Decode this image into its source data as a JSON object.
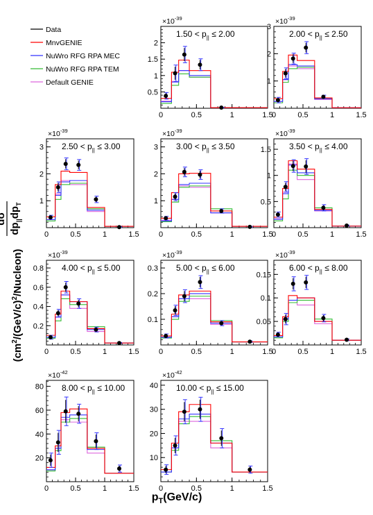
{
  "y_axis_title": "dσ/(dp_||dp_T) (cm²/(GeV/c)²/Nucleon)",
  "y_axis_title_parts": {
    "numerator": "dσ",
    "denominator": "dp",
    "sub1": "||",
    "dp2": "dp",
    "sub2": "T",
    "units": "(cm",
    "sup": "2",
    "units_rest": "/(GeV/c)",
    "sup2": "2",
    "units_end": "/Nucleon)"
  },
  "x_axis_title": "p_T(GeV/c)",
  "x_axis_title_parts": {
    "main": "p",
    "sub": "T",
    "rest": "(GeV/c)"
  },
  "legend": [
    {
      "label": "Data",
      "color": "#000000"
    },
    {
      "label": "MnvGENIE",
      "color": "#ff0000"
    },
    {
      "label": "NuWro RFG RPA MEC",
      "color": "#3333ff"
    },
    {
      "label": "NuWro RFG RPA TEM",
      "color": "#33bb33"
    },
    {
      "label": "Default GENIE",
      "color": "#dd66dd"
    }
  ],
  "chart_data": [
    {
      "type": "histogram",
      "label": "1.50 < p_|| ≤ 2.00",
      "label_lo": "1.50",
      "label_hi": "2.00",
      "scale_label": "×10^-39",
      "scale_base": "×10",
      "scale_exp": "-39",
      "ylim": [
        0,
        2.5
      ],
      "yticks": [
        0.5,
        1,
        1.5,
        2
      ],
      "xlim": [
        0,
        1.5
      ],
      "xticks": [
        0,
        0.5,
        1,
        1.5
      ],
      "bin_edges": [
        0,
        0.15,
        0.25,
        0.4,
        0.7,
        1.0,
        1.5
      ],
      "series": [
        {
          "name": "MnvGENIE",
          "values": [
            0.3,
            1.1,
            1.47,
            1.15,
            0.02,
            0.02
          ]
        },
        {
          "name": "NuWro RFG RPA MEC",
          "values": [
            0.2,
            0.8,
            1.15,
            1.0,
            0.02,
            0.02
          ]
        },
        {
          "name": "NuWro RFG RPA TEM",
          "values": [
            0.15,
            0.7,
            1.05,
            0.95,
            0.02,
            0.02
          ]
        },
        {
          "name": "Default GENIE",
          "values": [
            0.22,
            0.82,
            1.15,
            0.95,
            0.02,
            0.02
          ]
        }
      ],
      "data": {
        "x": [
          0.07,
          0.2,
          0.33,
          0.55,
          0.85
        ],
        "y": [
          0.38,
          1.07,
          1.64,
          1.33,
          0.02
        ],
        "err": [
          0.1,
          0.25,
          0.25,
          0.18,
          0.01
        ]
      }
    },
    {
      "type": "histogram",
      "label": "2.00 < p_|| ≤ 2.50",
      "label_lo": "2.00",
      "label_hi": "2.50",
      "scale_label": "×10^-39",
      "scale_base": "×10",
      "scale_exp": "-39",
      "ylim": [
        0,
        3
      ],
      "yticks": [
        1,
        2,
        3
      ],
      "xlim": [
        0,
        1.5
      ],
      "xticks": [
        0,
        0.5,
        1,
        1.5
      ],
      "bin_edges": [
        0,
        0.15,
        0.25,
        0.4,
        0.7,
        1.0,
        1.5
      ],
      "series": [
        {
          "name": "MnvGENIE",
          "values": [
            0.35,
            1.35,
            1.95,
            1.75,
            0.38,
            0.02
          ]
        },
        {
          "name": "NuWro RFG RPA MEC",
          "values": [
            0.25,
            1.05,
            1.6,
            1.55,
            0.35,
            0.02
          ]
        },
        {
          "name": "NuWro RFG RPA TEM",
          "values": [
            0.2,
            0.95,
            1.45,
            1.5,
            0.35,
            0.02
          ]
        },
        {
          "name": "Default GENIE",
          "values": [
            0.25,
            1.05,
            1.55,
            1.45,
            0.32,
            0.02
          ]
        }
      ],
      "data": {
        "x": [
          0.07,
          0.2,
          0.33,
          0.55,
          0.85
        ],
        "y": [
          0.3,
          1.28,
          1.82,
          2.22,
          0.42
        ],
        "err": [
          0.1,
          0.2,
          0.2,
          0.22,
          0.06
        ]
      }
    },
    {
      "type": "histogram",
      "label": "2.50 < p_|| ≤ 3.00",
      "label_lo": "2.50",
      "label_hi": "3.00",
      "scale_label": "×10^-39",
      "scale_base": "×10",
      "scale_exp": "-39",
      "ylim": [
        0,
        3.3
      ],
      "yticks": [
        1,
        2,
        3
      ],
      "xlim": [
        0,
        1.5
      ],
      "xticks": [
        0,
        0.5,
        1,
        1.5
      ],
      "bin_edges": [
        0,
        0.15,
        0.25,
        0.4,
        0.7,
        1.0,
        1.5
      ],
      "series": [
        {
          "name": "MnvGENIE",
          "values": [
            0.4,
            1.6,
            2.1,
            2.05,
            0.75,
            0.05
          ]
        },
        {
          "name": "NuWro RFG RPA MEC",
          "values": [
            0.3,
            1.2,
            1.7,
            1.75,
            0.65,
            0.05
          ]
        },
        {
          "name": "NuWro RFG RPA TEM",
          "values": [
            0.25,
            1.05,
            1.6,
            1.65,
            0.7,
            0.05
          ]
        },
        {
          "name": "Default GENIE",
          "values": [
            0.3,
            1.25,
            1.75,
            1.6,
            0.6,
            0.05
          ]
        }
      ],
      "data": {
        "x": [
          0.07,
          0.2,
          0.33,
          0.55,
          0.85,
          1.25
        ],
        "y": [
          0.38,
          1.5,
          2.37,
          2.33,
          1.05,
          0.02
        ],
        "err": [
          0.08,
          0.2,
          0.22,
          0.2,
          0.12,
          0.02
        ]
      }
    },
    {
      "type": "histogram",
      "label": "3.00 < p_|| ≤ 3.50",
      "label_lo": "3.00",
      "label_hi": "3.50",
      "scale_label": "×10^-39",
      "scale_base": "×10",
      "scale_exp": "-39",
      "ylim": [
        0,
        3.3
      ],
      "yticks": [
        1,
        2,
        3
      ],
      "xlim": [
        0,
        1.5
      ],
      "xticks": [
        0,
        0.5,
        1,
        1.5
      ],
      "bin_edges": [
        0,
        0.15,
        0.25,
        0.4,
        0.7,
        1.0,
        1.5
      ],
      "series": [
        {
          "name": "MnvGENIE",
          "values": [
            0.35,
            1.3,
            2.0,
            2.02,
            0.62,
            0.05
          ]
        },
        {
          "name": "NuWro RFG RPA MEC",
          "values": [
            0.25,
            1.05,
            1.6,
            1.65,
            0.55,
            0.05
          ]
        },
        {
          "name": "NuWro RFG RPA TEM",
          "values": [
            0.22,
            0.95,
            1.5,
            1.55,
            0.7,
            0.05
          ]
        },
        {
          "name": "Default GENIE",
          "values": [
            0.28,
            1.05,
            1.55,
            1.5,
            0.55,
            0.05
          ]
        }
      ],
      "data": {
        "x": [
          0.07,
          0.2,
          0.33,
          0.55,
          0.85,
          1.25
        ],
        "y": [
          0.35,
          1.15,
          2.07,
          1.97,
          0.62,
          0.03
        ],
        "err": [
          0.07,
          0.15,
          0.18,
          0.18,
          0.08,
          0.02
        ]
      }
    },
    {
      "type": "histogram",
      "label": "3.50 < p_|| ≤ 4.00",
      "label_lo": "3.50",
      "label_hi": "4.00",
      "scale_label": "×10^-39",
      "scale_base": "×10",
      "scale_exp": "-39",
      "ylim": [
        0,
        1.7
      ],
      "yticks": [
        0.5,
        1,
        1.5
      ],
      "xlim": [
        0,
        1.5
      ],
      "xticks": [
        0,
        0.5,
        1,
        1.5
      ],
      "bin_edges": [
        0,
        0.15,
        0.25,
        0.4,
        0.7,
        1.0,
        1.5
      ],
      "series": [
        {
          "name": "MnvGENIE",
          "values": [
            0.2,
            0.75,
            1.28,
            1.12,
            0.35,
            0.03
          ]
        },
        {
          "name": "NuWro RFG RPA MEC",
          "values": [
            0.16,
            0.65,
            1.2,
            1.05,
            0.33,
            0.03
          ]
        },
        {
          "name": "NuWro RFG RPA TEM",
          "values": [
            0.13,
            0.55,
            1.1,
            1.0,
            0.38,
            0.03
          ]
        },
        {
          "name": "Default GENIE",
          "values": [
            0.17,
            0.68,
            1.22,
            0.92,
            0.32,
            0.03
          ]
        }
      ],
      "data": {
        "x": [
          0.07,
          0.2,
          0.33,
          0.55,
          0.85,
          1.25
        ],
        "y": [
          0.25,
          0.78,
          1.18,
          1.17,
          0.38,
          0.04
        ],
        "err": [
          0.05,
          0.1,
          0.12,
          0.15,
          0.06,
          0.01
        ]
      }
    },
    {
      "type": "histogram",
      "label": "4.00 < p_|| ≤ 5.00",
      "label_lo": "4.00",
      "label_hi": "5.00",
      "scale_label": "×10^-39",
      "scale_base": "×10",
      "scale_exp": "-39",
      "ylim": [
        0,
        0.88
      ],
      "yticks": [
        0.2,
        0.4,
        0.6,
        0.8
      ],
      "xlim": [
        0,
        1.5
      ],
      "xticks": [
        0,
        0.5,
        1,
        1.5
      ],
      "bin_edges": [
        0,
        0.15,
        0.25,
        0.4,
        0.7,
        1.0,
        1.5
      ],
      "series": [
        {
          "name": "MnvGENIE",
          "values": [
            0.1,
            0.32,
            0.56,
            0.45,
            0.17,
            0.02
          ]
        },
        {
          "name": "NuWro RFG RPA MEC",
          "values": [
            0.08,
            0.29,
            0.52,
            0.45,
            0.16,
            0.02
          ]
        },
        {
          "name": "NuWro RFG RPA TEM",
          "values": [
            0.07,
            0.25,
            0.48,
            0.42,
            0.19,
            0.02
          ]
        },
        {
          "name": "Default GENIE",
          "values": [
            0.08,
            0.29,
            0.52,
            0.38,
            0.14,
            0.02
          ]
        }
      ],
      "data": {
        "x": [
          0.07,
          0.2,
          0.33,
          0.55,
          0.85,
          1.25
        ],
        "y": [
          0.08,
          0.33,
          0.6,
          0.43,
          0.16,
          0.02
        ],
        "err": [
          0.02,
          0.04,
          0.06,
          0.05,
          0.025,
          0.005
        ]
      }
    },
    {
      "type": "histogram",
      "label": "5.00 < p_|| ≤ 6.00",
      "label_lo": "5.00",
      "label_hi": "6.00",
      "scale_label": "×10^-39",
      "scale_base": "×10",
      "scale_exp": "-39",
      "ylim": [
        0,
        0.33
      ],
      "yticks": [
        0.1,
        0.2,
        0.3
      ],
      "xlim": [
        0,
        1.5
      ],
      "xticks": [
        0,
        0.5,
        1,
        1.5
      ],
      "bin_edges": [
        0,
        0.15,
        0.25,
        0.4,
        0.7,
        1.0,
        1.5
      ],
      "series": [
        {
          "name": "MnvGENIE",
          "values": [
            0.035,
            0.12,
            0.195,
            0.21,
            0.09,
            0.012
          ]
        },
        {
          "name": "NuWro RFG RPA MEC",
          "values": [
            0.03,
            0.11,
            0.18,
            0.2,
            0.085,
            0.012
          ]
        },
        {
          "name": "NuWro RFG RPA TEM",
          "values": [
            0.027,
            0.1,
            0.17,
            0.19,
            0.095,
            0.012
          ]
        },
        {
          "name": "Default GENIE",
          "values": [
            0.03,
            0.11,
            0.18,
            0.18,
            0.08,
            0.012
          ]
        }
      ],
      "data": {
        "x": [
          0.07,
          0.2,
          0.33,
          0.55,
          0.85,
          1.25
        ],
        "y": [
          0.035,
          0.135,
          0.19,
          0.245,
          0.085,
          0.013
        ],
        "err": [
          0.008,
          0.02,
          0.025,
          0.025,
          0.01,
          0.003
        ]
      }
    },
    {
      "type": "histogram",
      "label": "6.00 < p_|| ≤ 8.00",
      "label_lo": "6.00",
      "label_hi": "8.00",
      "scale_label": "×10^-39",
      "scale_base": "×10",
      "scale_exp": "-39",
      "ylim": [
        0,
        0.18
      ],
      "yticks": [
        0.05,
        0.1,
        0.15
      ],
      "xlim": [
        0,
        1.5
      ],
      "xticks": [
        0,
        0.5,
        1,
        1.5
      ],
      "bin_edges": [
        0,
        0.15,
        0.25,
        0.4,
        0.7,
        1.0,
        1.5
      ],
      "series": [
        {
          "name": "MnvGENIE",
          "values": [
            0.02,
            0.06,
            0.105,
            0.1,
            0.05,
            0.01
          ]
        },
        {
          "name": "NuWro RFG RPA MEC",
          "values": [
            0.017,
            0.055,
            0.095,
            0.1,
            0.05,
            0.01
          ]
        },
        {
          "name": "NuWro RFG RPA TEM",
          "values": [
            0.015,
            0.05,
            0.09,
            0.095,
            0.055,
            0.01
          ]
        },
        {
          "name": "Default GENIE",
          "values": [
            0.017,
            0.055,
            0.09,
            0.085,
            0.045,
            0.01
          ]
        }
      ],
      "data": {
        "x": [
          0.07,
          0.2,
          0.33,
          0.55,
          0.85,
          1.25
        ],
        "y": [
          0.022,
          0.055,
          0.13,
          0.133,
          0.057,
          0.011
        ],
        "err": [
          0.005,
          0.012,
          0.015,
          0.015,
          0.008,
          0.002
        ]
      }
    },
    {
      "type": "histogram",
      "label": "8.00 < p_|| ≤ 10.00",
      "label_lo": "8.00",
      "label_hi": "10.00",
      "scale_label": "×10^-42",
      "scale_base": "×10",
      "scale_exp": "-42",
      "ylim": [
        0,
        85
      ],
      "yticks": [
        20,
        40,
        60,
        80
      ],
      "xlim": [
        0,
        1.5
      ],
      "xticks": [
        0,
        0.5,
        1,
        1.5
      ],
      "bin_edges": [
        0,
        0.15,
        0.25,
        0.4,
        0.7,
        1.0,
        1.5
      ],
      "series": [
        {
          "name": "MnvGENIE",
          "values": [
            12,
            30,
            58,
            61,
            28,
            7
          ]
        },
        {
          "name": "NuWro RFG RPA MEC",
          "values": [
            10,
            28,
            54,
            56,
            27,
            7
          ]
        },
        {
          "name": "NuWro RFG RPA TEM",
          "values": [
            9,
            26,
            50,
            53,
            29,
            7
          ]
        },
        {
          "name": "Default GENIE",
          "values": [
            10,
            28,
            52,
            50,
            24,
            7
          ]
        }
      ],
      "data": {
        "x": [
          0.07,
          0.2,
          0.33,
          0.55,
          0.85,
          1.25
        ],
        "y": [
          18,
          33,
          59,
          57,
          34,
          11
        ],
        "err": [
          6,
          10,
          12,
          8,
          7,
          3
        ]
      }
    },
    {
      "type": "histogram",
      "label": "10.00 < p_|| ≤ 15.00",
      "label_lo": "10.00",
      "label_hi": "15.00",
      "scale_label": "×10^-42",
      "scale_base": "×10",
      "scale_exp": "-42",
      "ylim": [
        0,
        42
      ],
      "yticks": [
        10,
        20,
        30,
        40
      ],
      "xlim": [
        0,
        1.5
      ],
      "xticks": [
        0,
        0.5,
        1,
        1.5
      ],
      "bin_edges": [
        0,
        0.15,
        0.25,
        0.4,
        0.7,
        1.0,
        1.5
      ],
      "series": [
        {
          "name": "MnvGENIE",
          "values": [
            5,
            16,
            29,
            32,
            16,
            4
          ]
        },
        {
          "name": "NuWro RFG RPA MEC",
          "values": [
            4,
            14,
            26,
            28,
            16,
            4
          ]
        },
        {
          "name": "NuWro RFG RPA TEM",
          "values": [
            4,
            13,
            24,
            27,
            17,
            4
          ]
        },
        {
          "name": "Default GENIE",
          "values": [
            4,
            14,
            25,
            25,
            14,
            4
          ]
        }
      ],
      "data": {
        "x": [
          0.07,
          0.2,
          0.33,
          0.55,
          0.85,
          1.25
        ],
        "y": [
          5,
          15,
          29,
          30,
          18,
          5
        ],
        "err": [
          2,
          4,
          5,
          5,
          4,
          1.5
        ]
      }
    }
  ]
}
